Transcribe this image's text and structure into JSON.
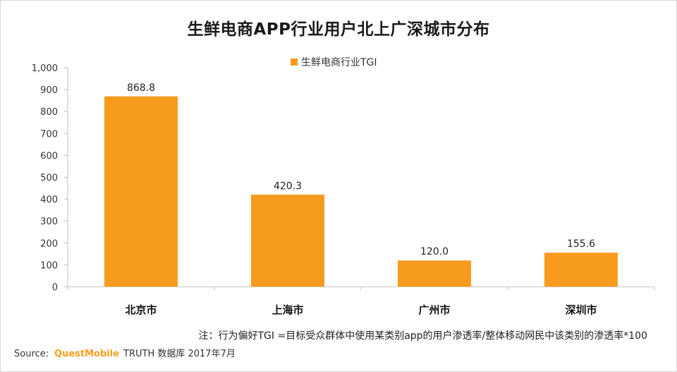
{
  "title": "生鲜电商APP行业用户北上广深城市分布",
  "legend": {
    "label": "生鲜电商行业TGI",
    "color": "#f79b1f"
  },
  "note": "注：行为偏好TGI =目标受众群体中使用某类别app的用户渗透率/整体移动网民中该类别的渗透率*100",
  "source": {
    "prefix": "Source:",
    "brand": "QuestMobile",
    "suffix": "TRUTH 数据库 2017年7月"
  },
  "chart_data": {
    "type": "bar",
    "title": "生鲜电商APP行业用户北上广深城市分布",
    "categories": [
      "北京市",
      "上海市",
      "广州市",
      "深圳市"
    ],
    "series": [
      {
        "name": "生鲜电商行业TGI",
        "values": [
          868.8,
          420.3,
          120.0,
          155.6
        ],
        "labels": [
          "868.8",
          "420.3",
          "120.0",
          "155.6"
        ],
        "color": "#f79b1f"
      }
    ],
    "yticks": [
      "0",
      "100",
      "200",
      "300",
      "400",
      "500",
      "600",
      "700",
      "800",
      "900",
      "1,000"
    ],
    "ylim": [
      0,
      1000
    ],
    "grid": false,
    "legend_position": "top-center",
    "xlabel": "",
    "ylabel": ""
  }
}
